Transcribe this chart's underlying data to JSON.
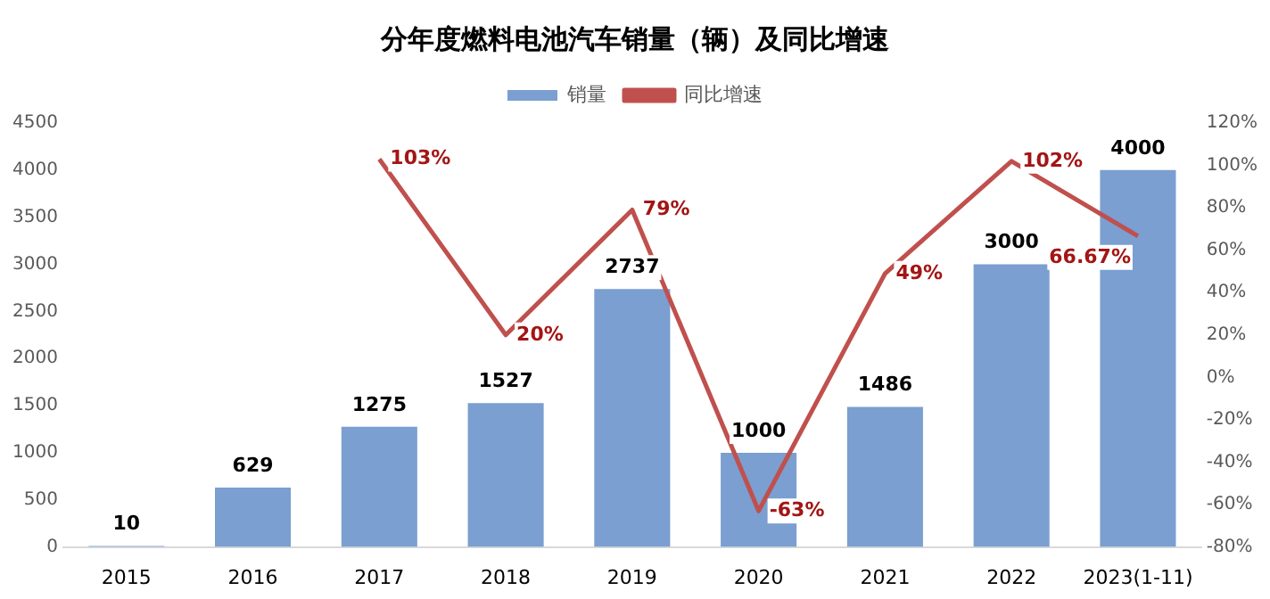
{
  "chart_data": {
    "type": "bar",
    "title": "分年度燃料电池汽车销量（辆）及同比增速",
    "categories": [
      "2015",
      "2016",
      "2017",
      "2018",
      "2019",
      "2020",
      "2021",
      "2022",
      "2023(1-11)"
    ],
    "series": [
      {
        "name": "销量",
        "color": "#7a9fd0",
        "values": [
          10,
          629,
          1275,
          1527,
          2737,
          1000,
          1486,
          3000,
          4000
        ],
        "value_labels": [
          "10",
          "629",
          "1275",
          "1527",
          "2737",
          "1000",
          "1486",
          "3000",
          "4000"
        ]
      },
      {
        "name": "同比增速",
        "type": "line",
        "axis": "y2",
        "color": "#c0504d",
        "values": [
          null,
          null,
          103,
          20,
          79,
          -63,
          49,
          102,
          66.67
        ],
        "value_labels": [
          null,
          null,
          "103%",
          "20%",
          "79%",
          "-63%",
          "49%",
          "102%",
          "66.67%"
        ]
      }
    ],
    "ylim": [
      0,
      4500
    ],
    "yticks": [
      0,
      500,
      1000,
      1500,
      2000,
      2500,
      3000,
      3500,
      4000,
      4500
    ],
    "y2lim": [
      -80,
      120
    ],
    "y2ticks": [
      {
        "value": -80,
        "label": "-80%"
      },
      {
        "value": -60,
        "label": "-60%"
      },
      {
        "value": -40,
        "label": "-40%"
      },
      {
        "value": -20,
        "label": "-20%"
      },
      {
        "value": 0,
        "label": "0%"
      },
      {
        "value": 20,
        "label": "20%"
      },
      {
        "value": 40,
        "label": "40%"
      },
      {
        "value": 60,
        "label": "60%"
      },
      {
        "value": 80,
        "label": "80%"
      },
      {
        "value": 100,
        "label": "100%"
      },
      {
        "value": 120,
        "label": "120%"
      }
    ],
    "legend": "top",
    "grid": false,
    "marker": "none"
  }
}
